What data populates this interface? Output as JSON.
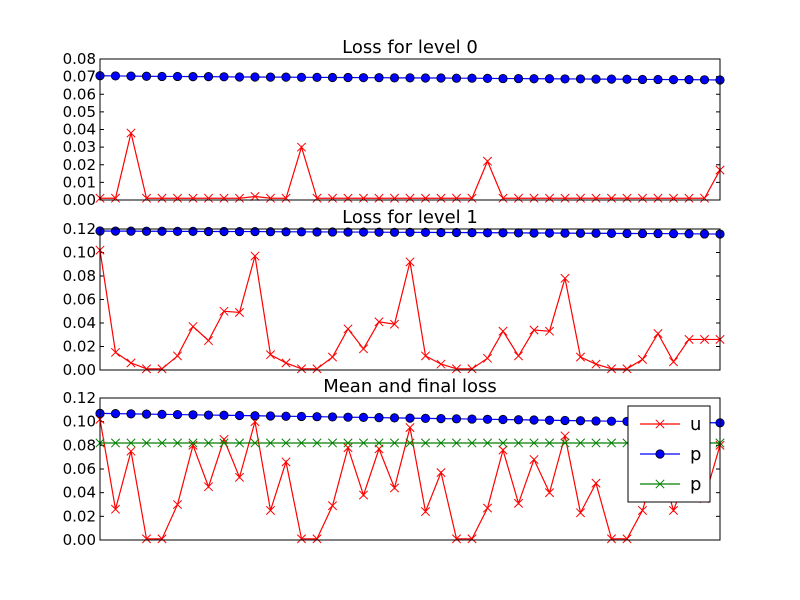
{
  "chart_data": [
    {
      "type": "line",
      "title": "Loss for level 0",
      "ylim": [
        0,
        0.08
      ],
      "yticks": [
        "0.00",
        "0.01",
        "0.02",
        "0.03",
        "0.04",
        "0.05",
        "0.06",
        "0.07",
        "0.08"
      ],
      "x": [
        0,
        1,
        2,
        3,
        4,
        5,
        6,
        7,
        8,
        9,
        10,
        11,
        12,
        13,
        14,
        15,
        16,
        17,
        18,
        19,
        20,
        21,
        22,
        23,
        24,
        25,
        26,
        27,
        28,
        29,
        30,
        31,
        32,
        33,
        34,
        35,
        36,
        37,
        38,
        39,
        40
      ],
      "series": [
        {
          "name": "u",
          "color": "#ff0000",
          "marker": "x",
          "values": [
            0.001,
            0.001,
            0.038,
            0.001,
            0.001,
            0.001,
            0.001,
            0.001,
            0.001,
            0.001,
            0.002,
            0.001,
            0.001,
            0.03,
            0.001,
            0.001,
            0.001,
            0.001,
            0.001,
            0.001,
            0.001,
            0.001,
            0.001,
            0.001,
            0.001,
            0.022,
            0.001,
            0.001,
            0.001,
            0.001,
            0.001,
            0.001,
            0.001,
            0.001,
            0.001,
            0.001,
            0.001,
            0.001,
            0.001,
            0.001,
            0.017
          ]
        },
        {
          "name": "p",
          "color": "#0000ff",
          "marker": "o",
          "values": [
            0.0705,
            0.0704,
            0.0703,
            0.0702,
            0.0701,
            0.0701,
            0.07,
            0.07,
            0.0699,
            0.0698,
            0.0698,
            0.0697,
            0.0697,
            0.0696,
            0.0696,
            0.0695,
            0.0695,
            0.0694,
            0.0694,
            0.0693,
            0.0693,
            0.0692,
            0.0692,
            0.0691,
            0.0691,
            0.069,
            0.0689,
            0.0689,
            0.0688,
            0.0688,
            0.0687,
            0.0687,
            0.0686,
            0.0686,
            0.0685,
            0.0684,
            0.0684,
            0.0683,
            0.0683,
            0.0682,
            0.0681
          ]
        }
      ]
    },
    {
      "type": "line",
      "title": "Loss for level 1",
      "ylim": [
        0,
        0.12
      ],
      "yticks": [
        "0.00",
        "0.02",
        "0.04",
        "0.06",
        "0.08",
        "0.10",
        "0.12"
      ],
      "x": [
        0,
        1,
        2,
        3,
        4,
        5,
        6,
        7,
        8,
        9,
        10,
        11,
        12,
        13,
        14,
        15,
        16,
        17,
        18,
        19,
        20,
        21,
        22,
        23,
        24,
        25,
        26,
        27,
        28,
        29,
        30,
        31,
        32,
        33,
        34,
        35,
        36,
        37,
        38,
        39,
        40
      ],
      "series": [
        {
          "name": "u",
          "color": "#ff0000",
          "marker": "x",
          "values": [
            0.102,
            0.015,
            0.006,
            0.001,
            0.001,
            0.012,
            0.037,
            0.025,
            0.05,
            0.049,
            0.097,
            0.013,
            0.006,
            0.001,
            0.001,
            0.011,
            0.035,
            0.018,
            0.041,
            0.039,
            0.092,
            0.012,
            0.005,
            0.001,
            0.001,
            0.01,
            0.033,
            0.012,
            0.034,
            0.033,
            0.078,
            0.011,
            0.005,
            0.001,
            0.001,
            0.009,
            0.031,
            0.007,
            0.026,
            0.026,
            0.026
          ]
        },
        {
          "name": "p",
          "color": "#0000ff",
          "marker": "o",
          "values": [
            0.1183,
            0.1182,
            0.1182,
            0.1181,
            0.1181,
            0.118,
            0.118,
            0.1179,
            0.1179,
            0.1178,
            0.1178,
            0.1177,
            0.1176,
            0.1176,
            0.1175,
            0.1175,
            0.1174,
            0.1174,
            0.1173,
            0.1172,
            0.1172,
            0.1171,
            0.117,
            0.117,
            0.1169,
            0.1168,
            0.1168,
            0.1167,
            0.1166,
            0.1166,
            0.1165,
            0.1164,
            0.1164,
            0.1163,
            0.1162,
            0.1161,
            0.1161,
            0.116,
            0.1159,
            0.1158,
            0.1157
          ]
        }
      ]
    },
    {
      "type": "line",
      "title": "Mean and final loss",
      "ylim": [
        0,
        0.12
      ],
      "yticks": [
        "0.00",
        "0.02",
        "0.04",
        "0.06",
        "0.08",
        "0.10",
        "0.12"
      ],
      "legend_loc": "right",
      "x": [
        0,
        1,
        2,
        3,
        4,
        5,
        6,
        7,
        8,
        9,
        10,
        11,
        12,
        13,
        14,
        15,
        16,
        17,
        18,
        19,
        20,
        21,
        22,
        23,
        24,
        25,
        26,
        27,
        28,
        29,
        30,
        31,
        32,
        33,
        34,
        35,
        36,
        37,
        38,
        39,
        40
      ],
      "series": [
        {
          "name": "u",
          "color": "#ff0000",
          "marker": "x",
          "values": [
            0.102,
            0.026,
            0.075,
            0.001,
            0.001,
            0.03,
            0.08,
            0.045,
            0.085,
            0.053,
            0.1,
            0.025,
            0.066,
            0.001,
            0.001,
            0.029,
            0.078,
            0.038,
            0.077,
            0.044,
            0.095,
            0.024,
            0.057,
            0.001,
            0.001,
            0.027,
            0.076,
            0.031,
            0.068,
            0.04,
            0.088,
            0.023,
            0.048,
            0.001,
            0.001,
            0.025,
            0.07,
            0.025,
            0.06,
            0.035,
            0.08
          ]
        },
        {
          "name": "p",
          "color": "#0000ff",
          "marker": "o",
          "values": [
            0.107,
            0.1068,
            0.1066,
            0.1064,
            0.1062,
            0.106,
            0.1058,
            0.1056,
            0.1054,
            0.1052,
            0.105,
            0.1048,
            0.1046,
            0.1044,
            0.1042,
            0.104,
            0.1038,
            0.1036,
            0.1034,
            0.1032,
            0.103,
            0.1028,
            0.1026,
            0.1024,
            0.1022,
            0.102,
            0.1018,
            0.1016,
            0.1014,
            0.1012,
            0.101,
            0.1008,
            0.1006,
            0.1004,
            0.1002,
            0.1,
            0.0998,
            0.0996,
            0.0994,
            0.0992,
            0.099
          ]
        },
        {
          "name": "p",
          "color": "#008000",
          "marker": "x",
          "values": [
            0.082,
            0.082,
            0.082,
            0.082,
            0.082,
            0.082,
            0.082,
            0.082,
            0.082,
            0.082,
            0.082,
            0.082,
            0.082,
            0.082,
            0.082,
            0.082,
            0.082,
            0.082,
            0.082,
            0.082,
            0.082,
            0.082,
            0.082,
            0.082,
            0.082,
            0.082,
            0.082,
            0.082,
            0.082,
            0.082,
            0.082,
            0.082,
            0.082,
            0.082,
            0.082,
            0.082,
            0.082,
            0.082,
            0.082,
            0.082,
            0.082
          ]
        }
      ]
    }
  ]
}
